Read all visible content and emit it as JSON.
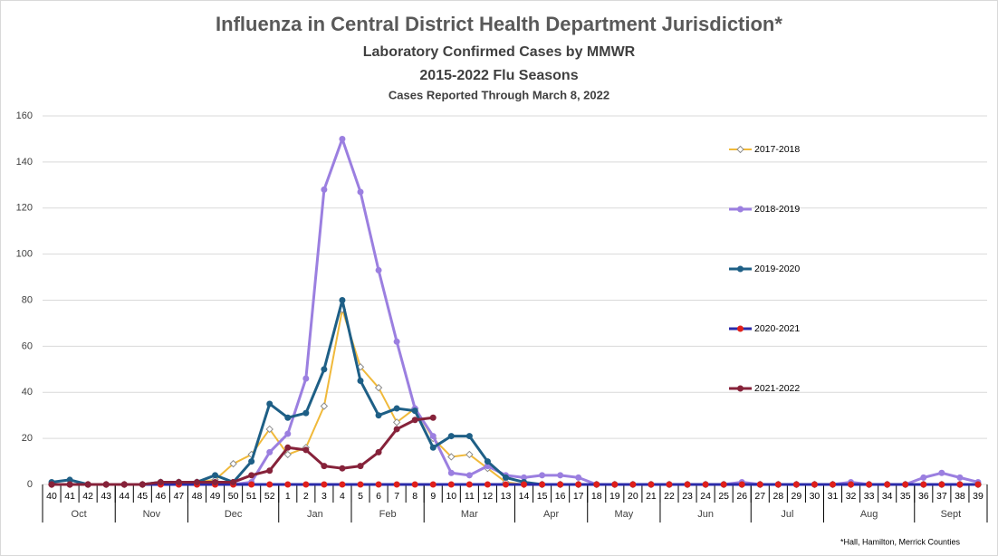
{
  "chart_data": {
    "type": "line",
    "title": "Influenza in Central District Health Department Jurisdiction*",
    "subtitle": "Laboratory  Confirmed  Cases  by MMWR",
    "subtitle2": "2015-2022 Flu Seasons",
    "subtitle3": "Cases Reported Through March 8, 2022",
    "footnote": "*Hall, Hamilton, Merrick Counties",
    "categories": [
      "40",
      "41",
      "42",
      "43",
      "44",
      "45",
      "46",
      "47",
      "48",
      "49",
      "50",
      "51",
      "52",
      "1",
      "2",
      "3",
      "4",
      "5",
      "6",
      "7",
      "8",
      "9",
      "10",
      "11",
      "12",
      "13",
      "14",
      "15",
      "16",
      "17",
      "18",
      "19",
      "20",
      "21",
      "22",
      "23",
      "24",
      "25",
      "26",
      "27",
      "28",
      "29",
      "30",
      "31",
      "32",
      "33",
      "34",
      "35",
      "36",
      "37",
      "38",
      "39"
    ],
    "month_groups": [
      {
        "label": "Oct",
        "span": 4
      },
      {
        "label": "Nov",
        "span": 4
      },
      {
        "label": "Dec",
        "span": 5
      },
      {
        "label": "Jan",
        "span": 4
      },
      {
        "label": "Feb",
        "span": 4
      },
      {
        "label": "Mar",
        "span": 5
      },
      {
        "label": "Apr",
        "span": 4
      },
      {
        "label": "May",
        "span": 4
      },
      {
        "label": "Jun",
        "span": 5
      },
      {
        "label": "Jul",
        "span": 4
      },
      {
        "label": "Aug",
        "span": 5
      },
      {
        "label": "Sept",
        "span": 4
      }
    ],
    "ylim": [
      0,
      160
    ],
    "yticks": [
      0,
      20,
      40,
      60,
      80,
      100,
      120,
      140,
      160
    ],
    "grid": true,
    "legend": "right",
    "series": [
      {
        "name": "2017-2018",
        "color": "#f0b93a",
        "marker_color": "#8c8c8c",
        "marker": "diamond",
        "values": [
          0,
          0,
          0,
          0,
          0,
          0,
          1,
          1,
          1,
          2,
          9,
          13,
          24,
          13,
          16,
          34,
          76,
          51,
          42,
          27,
          33,
          20,
          12,
          13,
          7,
          1,
          0,
          0,
          0,
          0,
          0,
          0,
          0,
          0,
          0,
          0,
          0,
          0,
          0,
          0,
          0,
          0,
          0,
          0,
          0,
          0,
          0,
          0,
          0,
          0,
          0,
          0
        ]
      },
      {
        "name": "2018-2019",
        "color": "#9b7fe0",
        "marker_color": "#9b7fe0",
        "marker": "circle",
        "values": [
          0,
          0,
          0,
          0,
          0,
          0,
          0,
          0,
          0,
          0,
          0,
          1,
          14,
          22,
          46,
          128,
          150,
          127,
          93,
          62,
          33,
          21,
          5,
          4,
          8,
          4,
          3,
          4,
          4,
          3,
          0,
          0,
          0,
          0,
          0,
          0,
          0,
          0,
          1,
          0,
          0,
          0,
          0,
          0,
          1,
          0,
          0,
          0,
          3,
          5,
          3,
          1
        ]
      },
      {
        "name": "2019-2020",
        "color": "#1e5f86",
        "marker_color": "#1e5f86",
        "marker": "circle",
        "values": [
          1,
          2,
          0,
          0,
          0,
          0,
          1,
          1,
          1,
          4,
          1,
          10,
          35,
          29,
          31,
          50,
          80,
          45,
          30,
          33,
          32,
          16,
          21,
          21,
          10,
          3,
          1,
          0,
          0,
          0,
          0,
          0,
          0,
          0,
          0,
          0,
          0,
          0,
          0,
          0,
          0,
          0,
          0,
          0,
          0,
          0,
          0,
          0,
          0,
          0,
          0,
          0
        ]
      },
      {
        "name": "2020-2021",
        "color": "#2a2aa8",
        "marker_color": "#e0201b",
        "marker": "circle",
        "values": [
          0,
          0,
          0,
          0,
          0,
          0,
          0,
          0,
          0,
          0,
          0,
          0,
          0,
          0,
          0,
          0,
          0,
          0,
          0,
          0,
          0,
          0,
          0,
          0,
          0,
          0,
          0,
          0,
          0,
          0,
          0,
          0,
          0,
          0,
          0,
          0,
          0,
          0,
          0,
          0,
          0,
          0,
          0,
          0,
          0,
          0,
          0,
          0,
          0,
          0,
          0,
          0
        ]
      },
      {
        "name": "2021-2022",
        "color": "#86223a",
        "marker_color": "#86223a",
        "marker": "circle",
        "values": [
          0,
          0,
          0,
          0,
          0,
          0,
          1,
          1,
          1,
          1,
          1,
          4,
          6,
          16,
          15,
          8,
          7,
          8,
          14,
          24,
          28,
          29,
          null,
          null,
          null,
          null,
          null,
          null,
          null,
          null,
          null,
          null,
          null,
          null,
          null,
          null,
          null,
          null,
          null,
          null,
          null,
          null,
          null,
          null,
          null,
          null,
          null,
          null,
          null,
          null,
          null,
          null
        ]
      }
    ]
  }
}
